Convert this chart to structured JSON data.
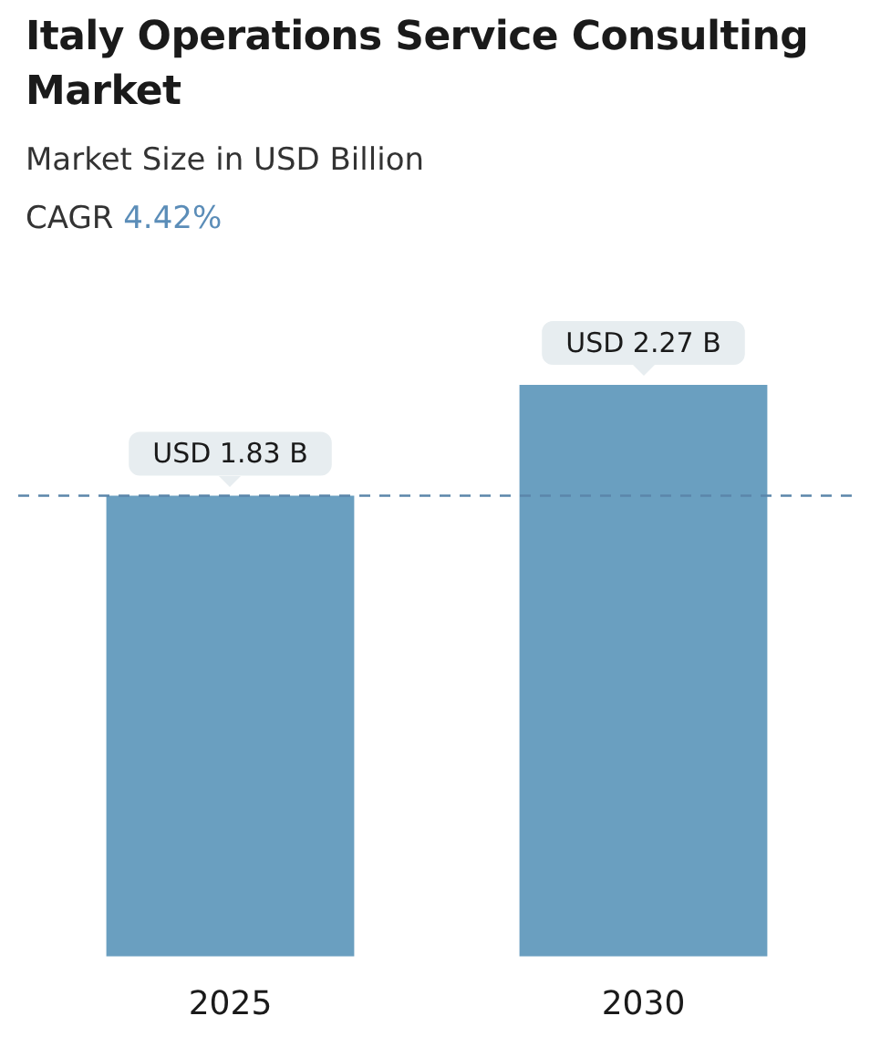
{
  "chart_data": {
    "type": "bar",
    "title": "Italy Operations Service Consulting Market",
    "subtitle": "Market Size in USD Billion",
    "annotations": [
      "CAGR 4.42%"
    ],
    "categories": [
      "2025",
      "2030"
    ],
    "values": [
      1.83,
      2.27
    ],
    "color": "#6a9fc0",
    "value_labels": [
      "USD 1.83 B",
      "USD 2.27 B"
    ],
    "ref_lines": [
      {
        "axis": "y",
        "value": 1.83,
        "color": "#5b86aa",
        "line_style": "dashed"
      }
    ],
    "grid": false,
    "legend": false
  }
}
